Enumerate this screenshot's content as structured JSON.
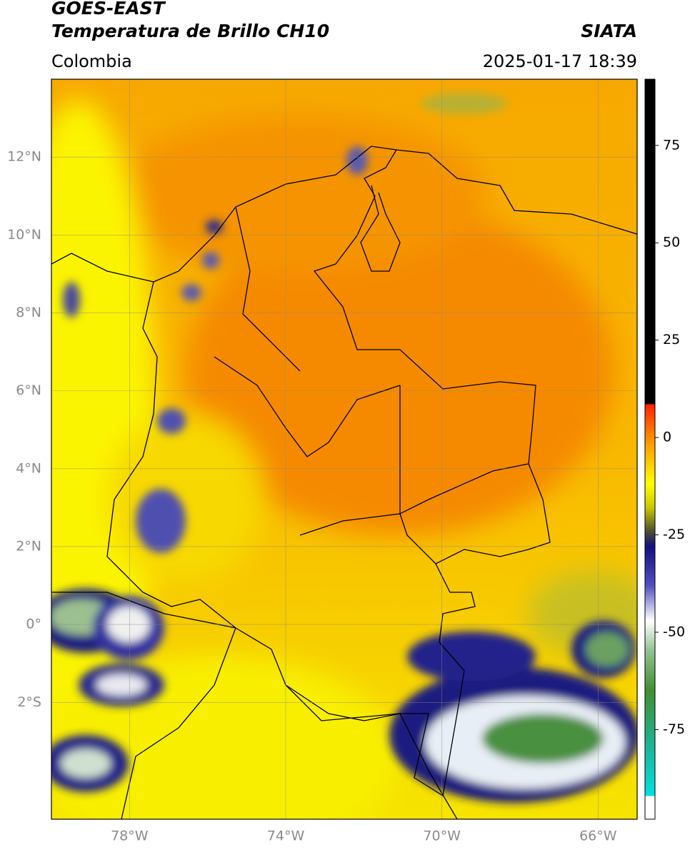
{
  "chart_data": {
    "type": "map",
    "title": "GOES-EAST",
    "subtitle": "Temperatura de Brillo CH10",
    "source": "SIATA",
    "region": "Colombia",
    "timestamp": "2025-01-17 18:39",
    "xlim": [
      -80,
      -65
    ],
    "ylim": [
      -5,
      14
    ],
    "xticks": [
      {
        "value": -78,
        "label": "78°W"
      },
      {
        "value": -74,
        "label": "74°W"
      },
      {
        "value": -70,
        "label": "70°W"
      },
      {
        "value": -66,
        "label": "66°W"
      }
    ],
    "yticks": [
      {
        "value": 12,
        "label": "12°N"
      },
      {
        "value": 10,
        "label": "10°N"
      },
      {
        "value": 8,
        "label": "8°N"
      },
      {
        "value": 6,
        "label": "6°N"
      },
      {
        "value": 4,
        "label": "4°N"
      },
      {
        "value": 2,
        "label": "2°N"
      },
      {
        "value": 0,
        "label": "0°"
      },
      {
        "value": -2,
        "label": "2°S"
      }
    ],
    "grid": true,
    "colorbar": {
      "clim": [
        -98,
        92
      ],
      "ticks": [
        75,
        50,
        25,
        0,
        -25,
        -50,
        -75
      ],
      "colormap": [
        {
          "value": 92,
          "color": "#000000"
        },
        {
          "value": 8.5,
          "color": "#000000"
        },
        {
          "value": 8.5,
          "color": "#ff2000"
        },
        {
          "value": 0,
          "color": "#ff8c00"
        },
        {
          "value": -12,
          "color": "#ffff00"
        },
        {
          "value": -18,
          "color": "#c8c800"
        },
        {
          "value": -24,
          "color": "#505030"
        },
        {
          "value": -28,
          "color": "#101080"
        },
        {
          "value": -38,
          "color": "#5050c0"
        },
        {
          "value": -47,
          "color": "#ffffff"
        },
        {
          "value": -55,
          "color": "#90c090"
        },
        {
          "value": -65,
          "color": "#409030"
        },
        {
          "value": -78,
          "color": "#20b090"
        },
        {
          "value": -92,
          "color": "#00e0e0"
        },
        {
          "value": -92,
          "color": "#ffffff"
        },
        {
          "value": -98,
          "color": "#ffffff"
        }
      ]
    }
  }
}
